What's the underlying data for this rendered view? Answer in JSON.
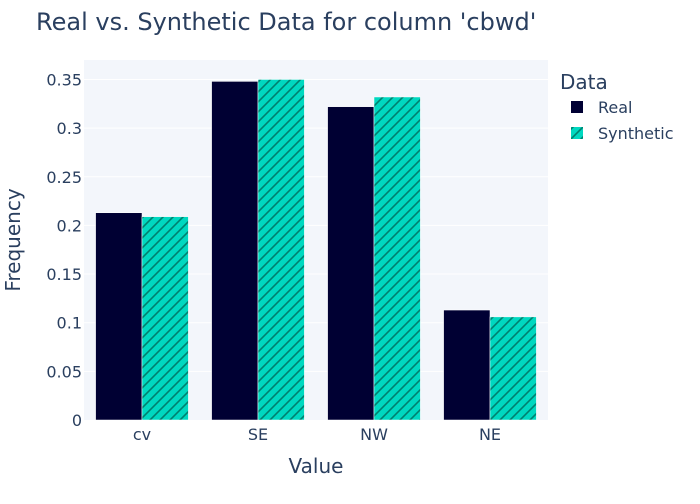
{
  "chart_data": {
    "type": "bar",
    "title": "Real vs. Synthetic Data for column 'cbwd'",
    "xlabel": "Value",
    "ylabel": "Frequency",
    "categories": [
      "cv",
      "SE",
      "NW",
      "NE"
    ],
    "ylim": [
      0,
      0.37
    ],
    "yticks": [
      0,
      0.05,
      0.1,
      0.15,
      0.2,
      0.25,
      0.3,
      0.35
    ],
    "ytick_labels": [
      "0",
      "0.05",
      "0.1",
      "0.15",
      "0.2",
      "0.25",
      "0.3",
      "0.35"
    ],
    "grid": true,
    "legend": {
      "title": "Data",
      "position": "right"
    },
    "series": [
      {
        "name": "Real",
        "color": "#000033",
        "pattern": "none",
        "values": [
          0.213,
          0.348,
          0.322,
          0.113
        ]
      },
      {
        "name": "Synthetic",
        "color": "#00d8c0",
        "pattern": "diagonal-hatch",
        "values": [
          0.209,
          0.35,
          0.332,
          0.106
        ]
      }
    ]
  }
}
